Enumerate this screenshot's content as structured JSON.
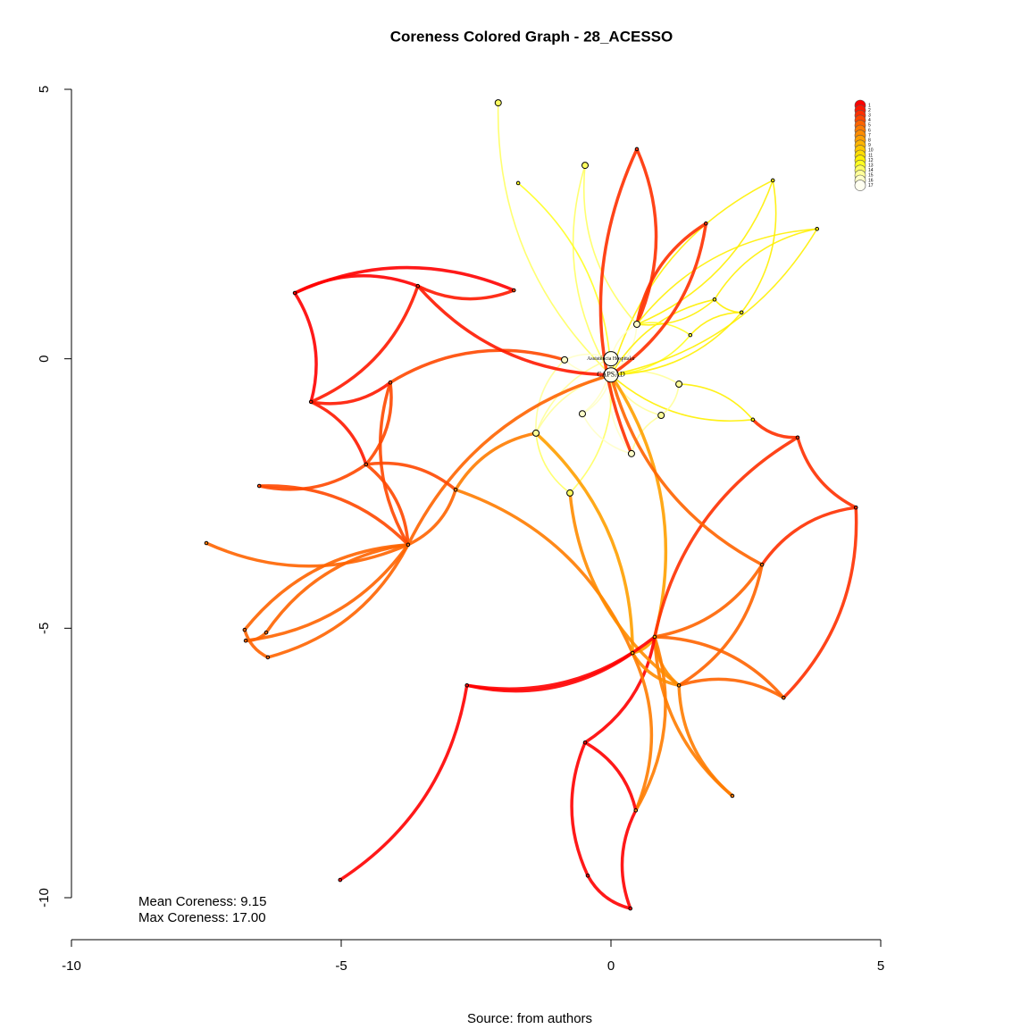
{
  "chart_data": {
    "type": "network",
    "title": "Coreness Colored Graph - 28_ACESSO",
    "caption": "Source: from authors",
    "annotations": [
      "Mean Coreness: 9.15",
      "Max Coreness: 17.00"
    ],
    "xlim": [
      -10,
      5
    ],
    "ylim": [
      -10,
      5
    ],
    "xticks": [
      -10,
      -5,
      0,
      5
    ],
    "yticks": [
      -10,
      -5,
      0,
      5
    ],
    "legend": {
      "position": "top-right",
      "labels": [
        1,
        2,
        3,
        4,
        5,
        6,
        7,
        8,
        9,
        10,
        11,
        12,
        13,
        14,
        15,
        16,
        17
      ],
      "colors": [
        "#FF0000",
        "#FF1800",
        "#FF3000",
        "#FF4800",
        "#FF6400",
        "#FF7C00",
        "#FF8C00",
        "#FFA000",
        "#FFB400",
        "#FFC800",
        "#FFDC00",
        "#FFF000",
        "#FFFF20",
        "#FFFF60",
        "#FFFF99",
        "#FFFFC8",
        "#FFFFF0"
      ]
    },
    "nodes": [
      {
        "x": 0,
        "y": -0.3,
        "core": 17,
        "label": "CAPSAD"
      },
      {
        "x": 0,
        "y": 0,
        "core": 17,
        "label": "Assistência Hospitalar"
      },
      {
        "x": 0.48,
        "y": 0.64,
        "core": 16
      },
      {
        "x": 0.81,
        "y": -5.16,
        "core": 8
      },
      {
        "x": 0.4,
        "y": -5.46,
        "core": 8
      },
      {
        "x": 1.26,
        "y": -6.06,
        "core": 7
      },
      {
        "x": -3.76,
        "y": -3.45,
        "core": 5
      },
      {
        "x": -5.56,
        "y": -0.8,
        "core": 2
      },
      {
        "x": -5.86,
        "y": 1.22,
        "core": 1
      },
      {
        "x": -6.79,
        "y": -5.03,
        "core": 5
      },
      {
        "x": -6.36,
        "y": -5.54,
        "core": 5
      },
      {
        "x": -6.39,
        "y": -5.08,
        "core": 5
      },
      {
        "x": -6.77,
        "y": -5.23,
        "core": 5
      },
      {
        "x": -5.02,
        "y": -9.67,
        "core": 1
      },
      {
        "x": -2.67,
        "y": -6.06,
        "core": 1
      },
      {
        "x": 0.36,
        "y": -10.2,
        "core": 1
      },
      {
        "x": -0.43,
        "y": -9.59,
        "core": 1
      },
      {
        "x": -0.48,
        "y": -7.12,
        "core": 1
      },
      {
        "x": 4.54,
        "y": -2.76,
        "core": 3
      },
      {
        "x": 3.46,
        "y": -1.46,
        "core": 3
      },
      {
        "x": -4.54,
        "y": -1.96,
        "core": 4
      },
      {
        "x": -4.09,
        "y": -0.44,
        "core": 4
      },
      {
        "x": -3.58,
        "y": 1.35,
        "core": 2
      },
      {
        "x": -6.52,
        "y": -2.36,
        "core": 4
      },
      {
        "x": -7.5,
        "y": -3.42,
        "core": 6
      },
      {
        "x": -2.09,
        "y": 4.75,
        "core": 14
      },
      {
        "x": 0.48,
        "y": 3.89,
        "core": 3
      },
      {
        "x": 3.82,
        "y": 2.41,
        "core": 12
      },
      {
        "x": 3.0,
        "y": 3.31,
        "core": 12
      },
      {
        "x": 3.2,
        "y": -6.29,
        "core": 5
      },
      {
        "x": 2.25,
        "y": -8.11,
        "core": 6
      },
      {
        "x": 0.46,
        "y": -8.38,
        "core": 6
      },
      {
        "x": 2.8,
        "y": -3.82,
        "core": 5
      },
      {
        "x": -2.88,
        "y": -2.43,
        "core": 6
      },
      {
        "x": -1.8,
        "y": 1.27,
        "core": 4
      },
      {
        "x": 1.92,
        "y": 1.1,
        "core": 12
      },
      {
        "x": 2.42,
        "y": 0.86,
        "core": 12
      },
      {
        "x": 1.47,
        "y": 0.44,
        "core": 13
      },
      {
        "x": -0.53,
        "y": -1.02,
        "core": 16
      },
      {
        "x": 0.38,
        "y": -1.76,
        "core": 16
      },
      {
        "x": -0.86,
        "y": -0.02,
        "core": 16
      },
      {
        "x": -1.39,
        "y": -1.38,
        "core": 15
      },
      {
        "x": 1.26,
        "y": -0.47,
        "core": 15
      },
      {
        "x": 0.93,
        "y": -1.05,
        "core": 15
      },
      {
        "x": -0.76,
        "y": -2.49,
        "core": 14
      },
      {
        "x": 1.76,
        "y": 2.51,
        "core": 3
      },
      {
        "x": -0.48,
        "y": 3.59,
        "core": 14
      },
      {
        "x": -1.72,
        "y": 3.26,
        "core": 13
      },
      {
        "x": 2.63,
        "y": -1.13,
        "core": 12
      }
    ],
    "edges": [
      [
        0,
        1
      ],
      [
        0,
        2
      ],
      [
        0,
        38
      ],
      [
        0,
        39
      ],
      [
        0,
        40
      ],
      [
        0,
        41
      ],
      [
        0,
        42
      ],
      [
        0,
        43
      ],
      [
        0,
        44
      ],
      [
        0,
        37
      ],
      [
        0,
        35
      ],
      [
        0,
        36
      ],
      [
        0,
        46
      ],
      [
        0,
        47
      ],
      [
        0,
        25
      ],
      [
        0,
        27
      ],
      [
        0,
        28
      ],
      [
        0,
        48
      ],
      [
        1,
        2
      ],
      [
        1,
        40
      ],
      [
        1,
        38
      ],
      [
        1,
        41
      ],
      [
        2,
        37
      ],
      [
        2,
        35
      ],
      [
        2,
        45
      ],
      [
        2,
        26
      ],
      [
        2,
        46
      ],
      [
        2,
        28
      ],
      [
        2,
        27
      ],
      [
        38,
        39
      ],
      [
        39,
        43
      ],
      [
        40,
        41
      ],
      [
        42,
        43
      ],
      [
        41,
        44
      ],
      [
        37,
        36
      ],
      [
        35,
        36
      ],
      [
        42,
        48
      ],
      [
        3,
        0
      ],
      [
        3,
        4
      ],
      [
        3,
        5
      ],
      [
        3,
        29
      ],
      [
        3,
        30
      ],
      [
        3,
        31
      ],
      [
        3,
        32
      ],
      [
        3,
        17
      ],
      [
        4,
        5
      ],
      [
        4,
        31
      ],
      [
        4,
        33
      ],
      [
        4,
        14
      ],
      [
        5,
        30
      ],
      [
        5,
        29
      ],
      [
        5,
        32
      ],
      [
        3,
        19
      ],
      [
        4,
        41
      ],
      [
        5,
        44
      ],
      [
        31,
        15
      ],
      [
        16,
        17
      ],
      [
        16,
        15
      ],
      [
        17,
        31
      ],
      [
        6,
        9
      ],
      [
        6,
        10
      ],
      [
        6,
        11
      ],
      [
        6,
        12
      ],
      [
        9,
        10
      ],
      [
        11,
        12
      ],
      [
        6,
        20
      ],
      [
        6,
        21
      ],
      [
        6,
        23
      ],
      [
        6,
        24
      ],
      [
        6,
        33
      ],
      [
        6,
        0
      ],
      [
        20,
        21
      ],
      [
        20,
        33
      ],
      [
        7,
        21
      ],
      [
        7,
        20
      ],
      [
        7,
        8
      ],
      [
        8,
        22
      ],
      [
        22,
        34
      ],
      [
        8,
        34
      ],
      [
        7,
        22
      ],
      [
        21,
        40
      ],
      [
        23,
        20
      ],
      [
        14,
        13
      ],
      [
        14,
        3
      ],
      [
        33,
        41
      ],
      [
        22,
        0
      ],
      [
        18,
        19
      ],
      [
        18,
        32
      ],
      [
        19,
        48
      ],
      [
        29,
        18
      ],
      [
        32,
        0
      ],
      [
        26,
        39
      ],
      [
        45,
        0
      ],
      [
        27,
        35
      ],
      [
        28,
        36
      ]
    ]
  }
}
